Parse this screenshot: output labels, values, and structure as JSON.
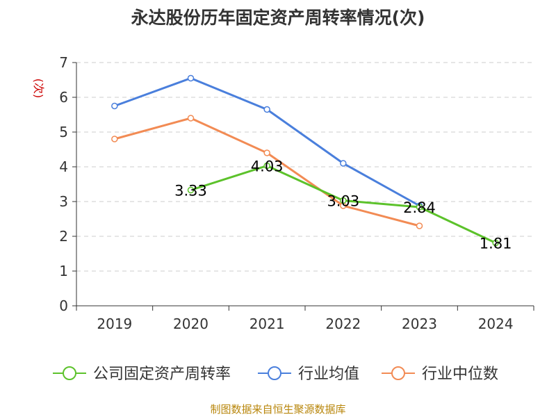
{
  "chart_data": {
    "type": "line",
    "title": "永达股份历年固定资产周转率情况(次)",
    "ylabel": "(次)",
    "xlabel": "",
    "ylim": [
      0,
      7
    ],
    "yticks": [
      "0",
      "1",
      "2",
      "3",
      "4",
      "5",
      "6",
      "7"
    ],
    "categories": [
      "2019",
      "2020",
      "2021",
      "2022",
      "2023",
      "2024"
    ],
    "grid": true,
    "legend_position": "bottom",
    "series": [
      {
        "name": "公司固定资产周转率",
        "color": "#5cc22b",
        "values": [
          null,
          3.33,
          4.03,
          3.03,
          2.84,
          1.81
        ],
        "labels": [
          "",
          "3.33",
          "4.03",
          "3.03",
          "2.84",
          "1.81"
        ]
      },
      {
        "name": "行业均值",
        "color": "#4a7fdc",
        "values": [
          5.75,
          6.55,
          5.65,
          4.1,
          2.88,
          null
        ]
      },
      {
        "name": "行业中位数",
        "color": "#f28b54",
        "values": [
          4.8,
          5.4,
          4.4,
          2.88,
          2.3,
          null
        ]
      }
    ],
    "source": "制图数据来自恒生聚源数据库"
  },
  "colors": {
    "axis": "#333333",
    "grid": "#cccccc",
    "ylabel": "#cc0000",
    "source": "#b8860b"
  }
}
